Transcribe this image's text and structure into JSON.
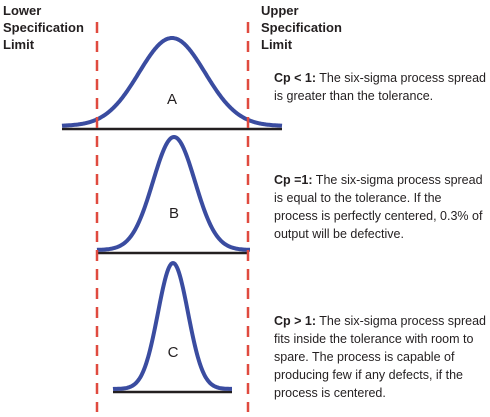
{
  "labels": {
    "lower_spec_limit": [
      "Lower",
      "Specification",
      "Limit"
    ],
    "upper_spec_limit": [
      "Upper",
      "Specification",
      "Limit"
    ]
  },
  "curves": [
    {
      "id": "A",
      "label": "A"
    },
    {
      "id": "B",
      "label": "B"
    },
    {
      "id": "C",
      "label": "C"
    }
  ],
  "descriptions": {
    "a": {
      "lead": "Cp < 1:",
      "text": " The six-sigma process spread is greater than the tolerance."
    },
    "b": {
      "lead": "Cp =1:",
      "text": " The six-sigma process spread is equal to the tolerance. If the process is perfectly centered, 0.3% of output will be defective."
    },
    "c": {
      "lead": "Cp > 1:",
      "text": " The six-sigma process spread fits inside the tolerance with room to spare.  The process is capable of producing few if any defects, if the process is centered."
    }
  },
  "colors": {
    "curve": "#3a4ca0",
    "spec_line": "#e04a3f",
    "baseline": "#231f20",
    "text": "#231f20"
  }
}
